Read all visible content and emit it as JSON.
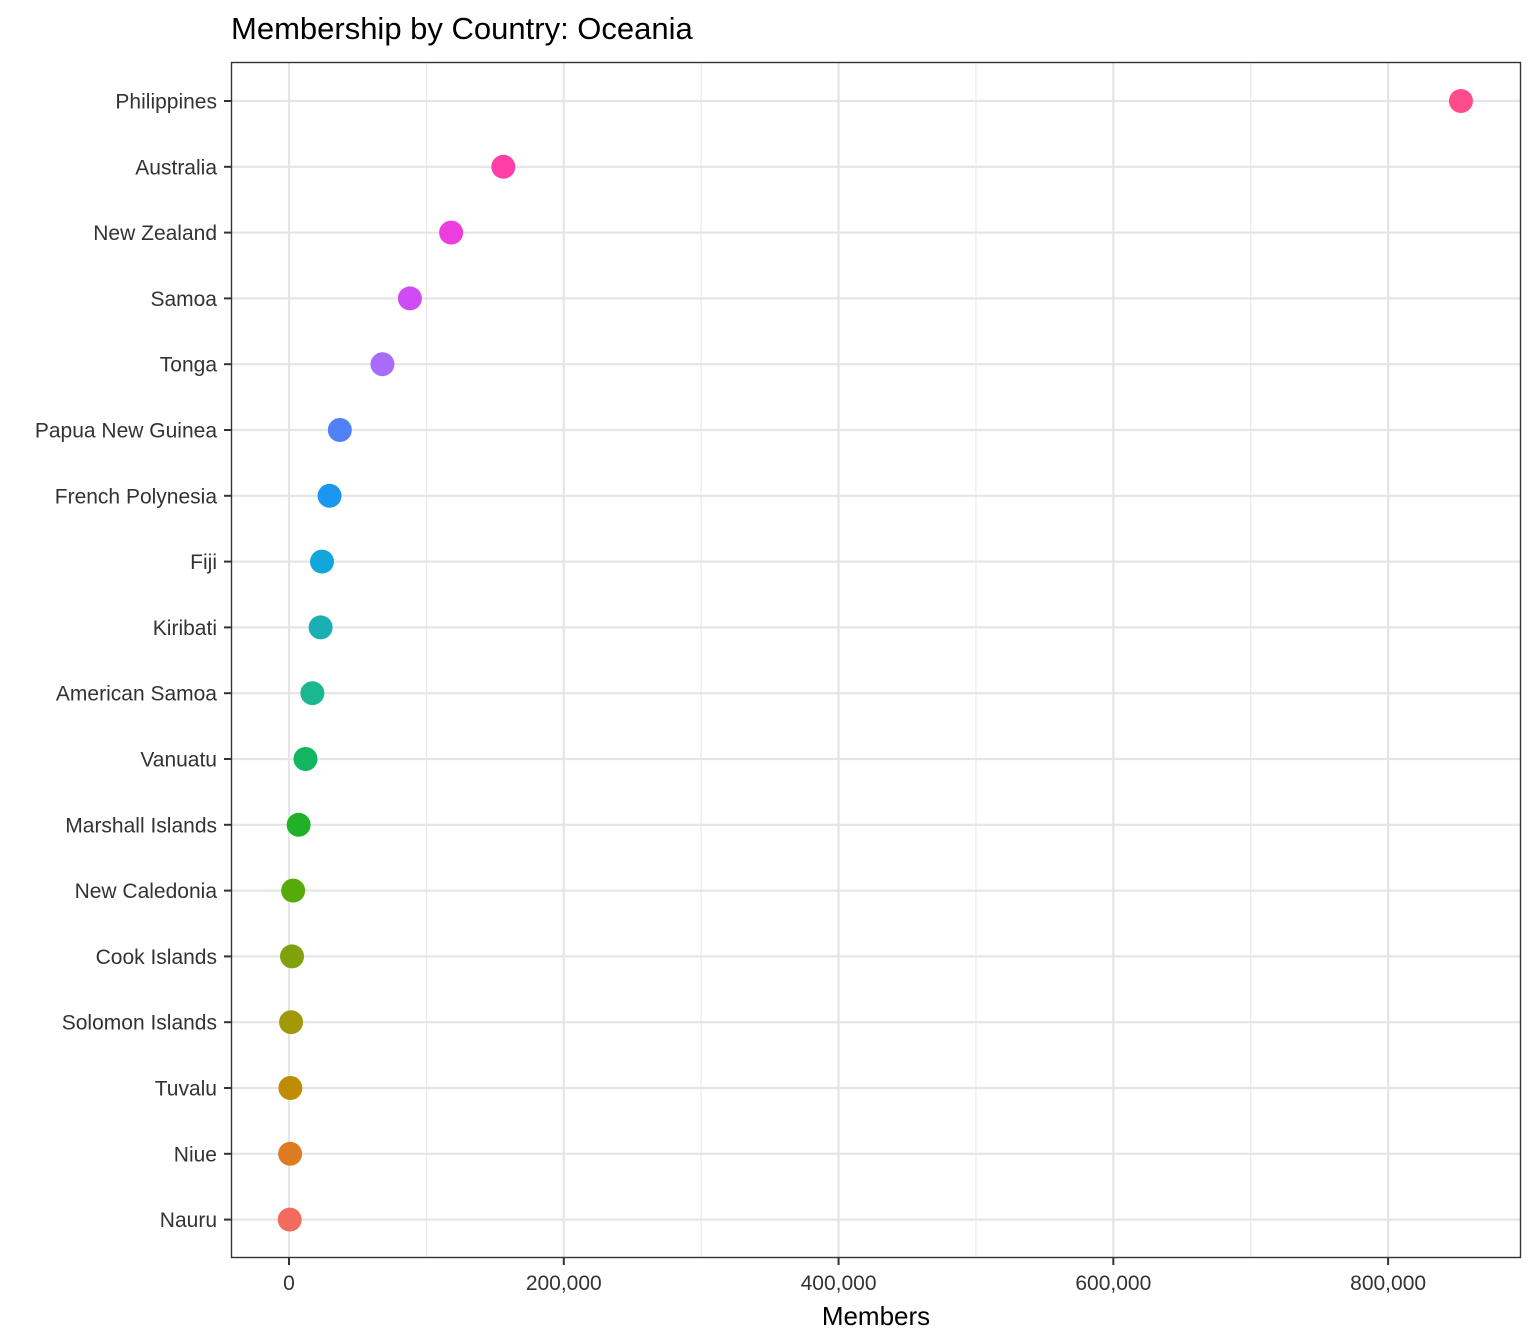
{
  "chart_data": {
    "type": "scatter",
    "title": "Membership by Country: Oceania",
    "xlabel": "Members",
    "ylabel": "",
    "xlim": [
      -41500,
      896000
    ],
    "x_major_ticks": [
      0,
      200000,
      400000,
      600000,
      800000
    ],
    "x_minor_ticks": [
      100000,
      300000,
      500000,
      700000
    ],
    "x_tick_labels": [
      "0",
      "200,000",
      "400,000",
      "600,000",
      "800,000"
    ],
    "grid": true,
    "legend": "none",
    "points": [
      {
        "country": "Philippines",
        "value": 853000,
        "color": "#FF4C8A"
      },
      {
        "country": "Australia",
        "value": 156000,
        "color": "#FF3EA6"
      },
      {
        "country": "New Zealand",
        "value": 118000,
        "color": "#EC3EDE"
      },
      {
        "country": "Samoa",
        "value": 88000,
        "color": "#CF4BF4"
      },
      {
        "country": "Tonga",
        "value": 68000,
        "color": "#A96BFA"
      },
      {
        "country": "Papua New Guinea",
        "value": 37000,
        "color": "#5181F9"
      },
      {
        "country": "French Polynesia",
        "value": 29500,
        "color": "#1B96F2"
      },
      {
        "country": "Fiji",
        "value": 24000,
        "color": "#11A6DC"
      },
      {
        "country": "Kiribati",
        "value": 23000,
        "color": "#1BAEB2"
      },
      {
        "country": "American Samoa",
        "value": 17000,
        "color": "#19B891"
      },
      {
        "country": "Vanuatu",
        "value": 12000,
        "color": "#13B560"
      },
      {
        "country": "Marshall Islands",
        "value": 7000,
        "color": "#1FB226"
      },
      {
        "country": "New Caledonia",
        "value": 3000,
        "color": "#56AA0A"
      },
      {
        "country": "Cook Islands",
        "value": 2200,
        "color": "#7FA10B"
      },
      {
        "country": "Solomon Islands",
        "value": 1500,
        "color": "#A19909"
      },
      {
        "country": "Tuvalu",
        "value": 1000,
        "color": "#C18C05"
      },
      {
        "country": "Niue",
        "value": 800,
        "color": "#DE7B22"
      },
      {
        "country": "Nauru",
        "value": 500,
        "color": "#F26B5E"
      }
    ]
  }
}
